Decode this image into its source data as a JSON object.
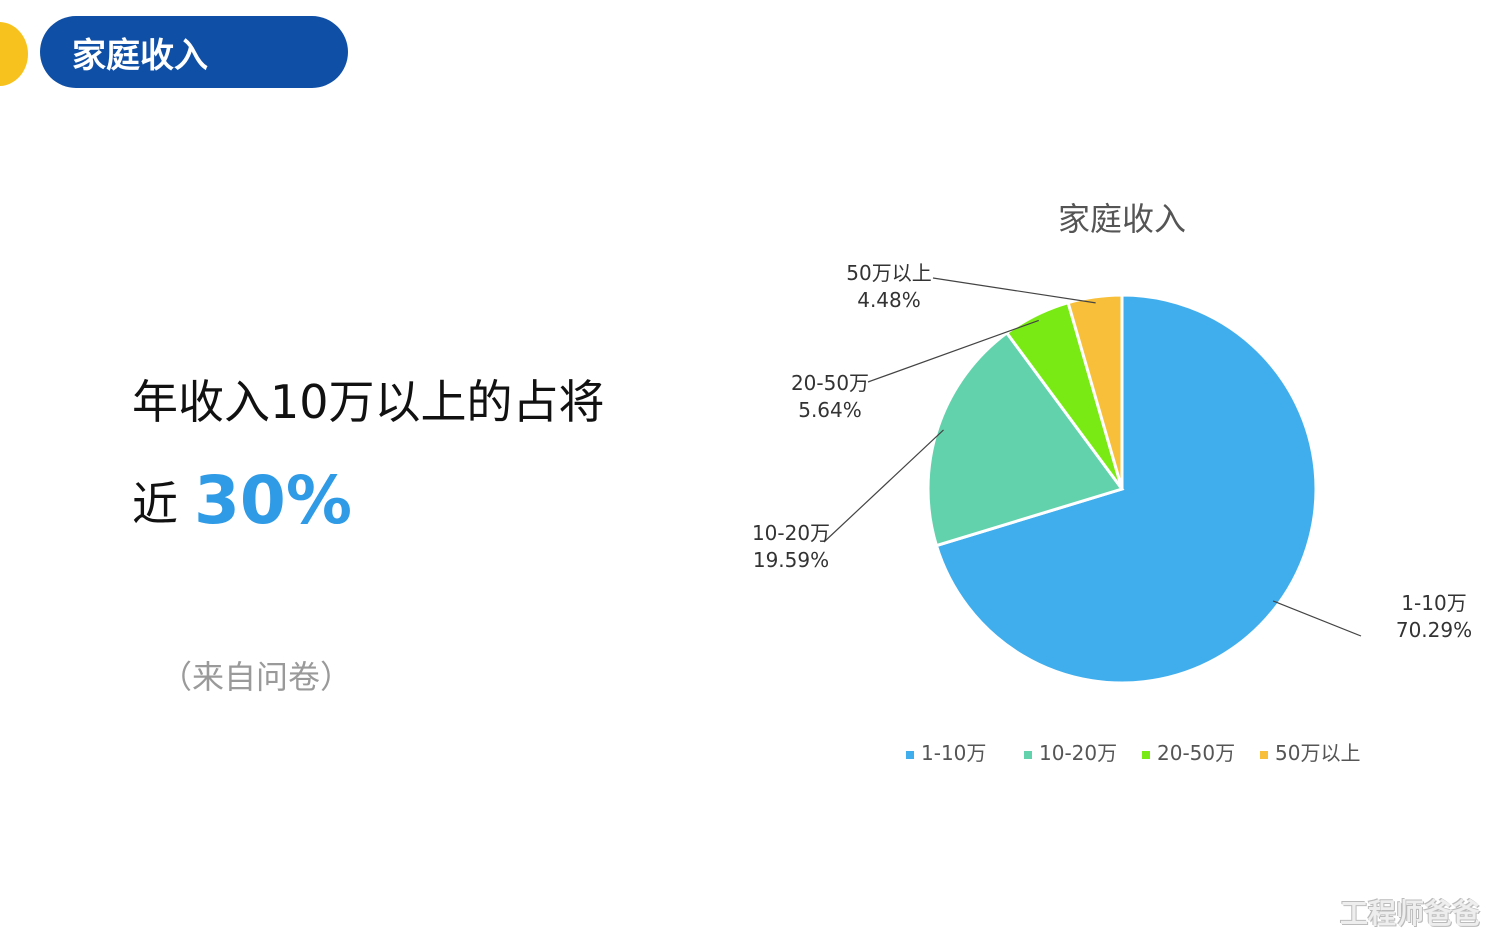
{
  "header": {
    "title": "家庭收入"
  },
  "headline": {
    "line1": "年收入10万以上的占将",
    "line2_prefix": "近",
    "line2_highlight": "30%"
  },
  "source_note": "（来自问卷）",
  "watermark": "工程师爸爸",
  "colors": {
    "header_bg": "#0f4fa6",
    "accent_dot": "#f7c21e",
    "highlight": "#2f9ae6"
  },
  "chart_data": {
    "type": "pie",
    "title": "家庭收入",
    "legend_position": "bottom",
    "slices": [
      {
        "label": "1-10万",
        "percent_label": "70.29%",
        "value": 70.29,
        "color": "#40aeed"
      },
      {
        "label": "10-20万",
        "percent_label": "19.59%",
        "value": 19.59,
        "color": "#62d2ad"
      },
      {
        "label": "20-50万",
        "percent_label": "5.64%",
        "value": 5.64,
        "color": "#7aea15"
      },
      {
        "label": "50万以上",
        "percent_label": "4.48%",
        "value": 4.48,
        "color": "#f8c03a"
      }
    ]
  }
}
